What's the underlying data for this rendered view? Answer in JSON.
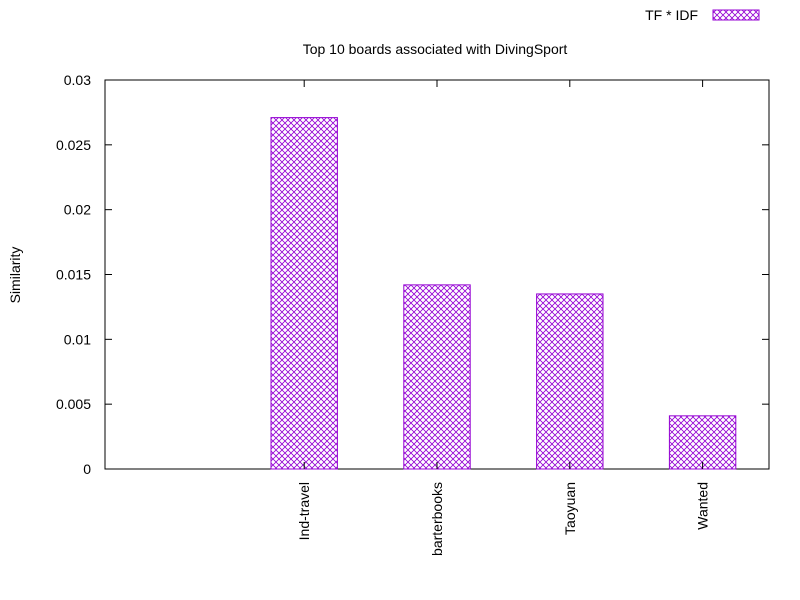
{
  "chart_data": {
    "type": "bar",
    "title": "Top 10 boards associated with DivingSport",
    "xlabel": "",
    "ylabel": "Similarity",
    "categories": [
      "Ind-travel",
      "barterbooks",
      "Taoyuan",
      "Wanted"
    ],
    "series": [
      {
        "name": "TF * IDF",
        "values": [
          0.0271,
          0.0142,
          0.0135,
          0.0041
        ]
      }
    ],
    "ylim": [
      0,
      0.03
    ],
    "yticks": [
      "0",
      "0.005",
      "0.01",
      "0.015",
      "0.02",
      "0.025",
      "0.03"
    ],
    "xlim": [
      -1.5,
      3.5
    ],
    "grid": false,
    "legend_position": "top-right",
    "bar_color": "#9400d3",
    "bar_pattern": "crosshatch"
  }
}
